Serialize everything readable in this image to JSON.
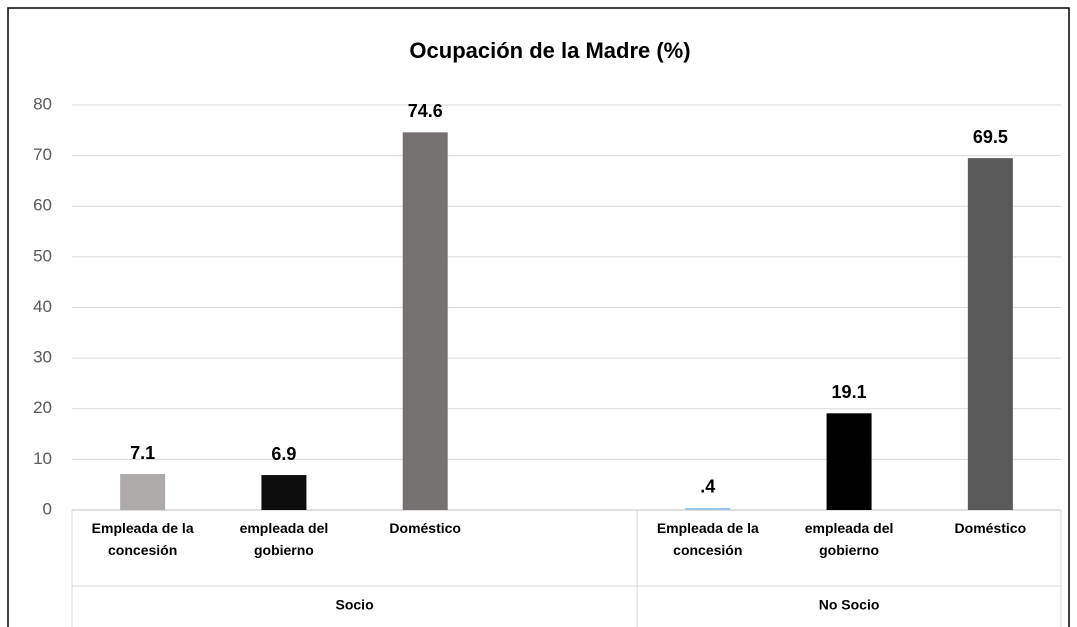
{
  "chart_data": {
    "type": "bar",
    "title": "Ocupación de la Madre (%)",
    "categories": [
      "Empleada de la concesión",
      "empleada del gobierno",
      "Doméstico",
      null,
      "Empleada de la concesión",
      "empleada del gobierno",
      "Doméstico"
    ],
    "values": [
      7.1,
      6.9,
      74.6,
      null,
      0.4,
      19.1,
      69.5
    ],
    "value_labels": [
      "7.1",
      "6.9",
      "74.6",
      null,
      ".4",
      "19.1",
      "69.5"
    ],
    "colors": [
      "#aeaaaa",
      "#0d0d0d",
      "#767171",
      null,
      "#9dc3e6",
      "#000000",
      "#595959"
    ],
    "groups": [
      {
        "label": "Socio",
        "start": 0,
        "end": 3
      },
      {
        "label": "No Socio",
        "start": 4,
        "end": 6
      }
    ],
    "ylim": [
      0,
      80
    ],
    "yticks": [
      0,
      10,
      20,
      30,
      40,
      50,
      60,
      70,
      80
    ],
    "grid": true
  }
}
